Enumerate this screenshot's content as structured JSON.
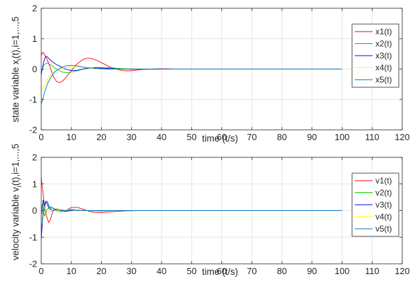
{
  "chart_data": [
    {
      "type": "line",
      "xlabel": "time (t/s)",
      "ylabel_parts": {
        "before": "state variable x",
        "subscript": "i",
        "after": "(t),i=1,...,5"
      },
      "xlim": [
        0,
        120
      ],
      "ylim": [
        -2,
        2
      ],
      "xticks": [
        0,
        10,
        20,
        30,
        40,
        50,
        60,
        70,
        80,
        90,
        100,
        110,
        120
      ],
      "yticks": [
        -2,
        -1,
        0,
        1,
        2
      ],
      "grid": true,
      "legend_position": "top-right",
      "series": [
        {
          "name": "x1(t)",
          "color": "#ff0000",
          "x": [
            0,
            0.5,
            1,
            2,
            3,
            4,
            5,
            6,
            7,
            8,
            10,
            12,
            14,
            15.5,
            17,
            19,
            21,
            23,
            25,
            27,
            29,
            31,
            33,
            36,
            40,
            45,
            55,
            70,
            100
          ],
          "y": [
            0.45,
            0.55,
            0.5,
            0.3,
            0.05,
            -0.25,
            -0.4,
            -0.45,
            -0.4,
            -0.3,
            -0.05,
            0.18,
            0.32,
            0.36,
            0.34,
            0.26,
            0.16,
            0.06,
            -0.01,
            -0.05,
            -0.06,
            -0.04,
            -0.02,
            0.0,
            0.01,
            0.0,
            0.0,
            0.0,
            0.0
          ]
        },
        {
          "name": "x2(t)",
          "color": "#00cc00",
          "x": [
            0,
            1,
            2,
            3,
            5,
            7,
            9,
            11,
            14,
            18,
            22,
            26,
            30,
            35,
            45,
            60,
            100
          ],
          "y": [
            -0.05,
            0.15,
            0.2,
            0.15,
            0.0,
            -0.1,
            -0.12,
            -0.08,
            0.0,
            0.05,
            0.05,
            0.02,
            0.0,
            -0.01,
            0.0,
            0.0,
            0.0
          ]
        },
        {
          "name": "x3(t)",
          "color": "#0000ff",
          "x": [
            0,
            0.5,
            1,
            1.5,
            2,
            3,
            4,
            5,
            6,
            8,
            10,
            12,
            15,
            18,
            22,
            26,
            30,
            35,
            45,
            60,
            100
          ],
          "y": [
            -0.2,
            0.1,
            0.3,
            0.42,
            0.4,
            0.3,
            0.22,
            0.15,
            0.1,
            0.0,
            -0.05,
            -0.04,
            0.02,
            0.04,
            0.02,
            0.0,
            -0.01,
            0.0,
            0.0,
            0.0,
            0.0
          ]
        },
        {
          "name": "x4(t)",
          "color": "#ffff00",
          "x": [
            0,
            0.5,
            1,
            2,
            3,
            4,
            6,
            8,
            10,
            13,
            16,
            20,
            25,
            30,
            40,
            60,
            100
          ],
          "y": [
            -0.6,
            -0.65,
            -0.55,
            -0.35,
            -0.2,
            -0.1,
            0.0,
            0.05,
            0.08,
            0.06,
            0.03,
            0.0,
            -0.01,
            0.0,
            0.0,
            0.0,
            0.0
          ]
        },
        {
          "name": "x5(t)",
          "color": "#0072bd",
          "x": [
            0,
            0.5,
            1,
            2,
            3,
            4,
            5,
            6,
            8,
            10,
            12,
            15,
            18,
            22,
            26,
            30,
            35,
            45,
            60,
            100
          ],
          "y": [
            -1.15,
            -1.0,
            -0.8,
            -0.5,
            -0.3,
            -0.15,
            -0.05,
            0.02,
            0.1,
            0.12,
            0.1,
            0.05,
            0.02,
            0.0,
            0.0,
            0.01,
            0.0,
            0.0,
            0.0,
            0.0
          ]
        }
      ]
    },
    {
      "type": "line",
      "xlabel": "time (t/s)",
      "ylabel_parts": {
        "before": "velocity variable v",
        "subscript": "i",
        "after": "(t),i=1,...,5"
      },
      "xlim": [
        0,
        120
      ],
      "ylim": [
        -2,
        2
      ],
      "xticks": [
        0,
        10,
        20,
        30,
        40,
        50,
        60,
        70,
        80,
        90,
        100,
        110,
        120
      ],
      "yticks": [
        -2,
        -1,
        0,
        1,
        2
      ],
      "grid": true,
      "legend_position": "top-right",
      "series": [
        {
          "name": "v1(t)",
          "color": "#ff0000",
          "x": [
            0,
            0.3,
            0.7,
            1,
            1.5,
            2,
            2.5,
            3,
            3.5,
            4,
            5,
            6,
            7,
            8,
            9,
            10,
            12,
            14,
            16,
            18,
            20,
            22,
            25,
            28,
            32,
            40,
            60,
            100
          ],
          "y": [
            1.25,
            0.9,
            0.6,
            0.2,
            -0.1,
            -0.3,
            -0.45,
            -0.35,
            -0.15,
            0.0,
            0.05,
            0.02,
            -0.02,
            0.0,
            0.05,
            0.12,
            0.12,
            0.05,
            -0.03,
            -0.07,
            -0.08,
            -0.06,
            -0.03,
            -0.01,
            0.0,
            0.0,
            0.0,
            0.0
          ]
        },
        {
          "name": "v2(t)",
          "color": "#00cc00",
          "x": [
            0,
            0.3,
            0.7,
            1,
            1.5,
            2,
            3,
            4,
            5,
            6,
            8,
            10,
            12,
            15,
            20,
            25,
            30,
            40,
            60,
            100
          ],
          "y": [
            -0.2,
            0.25,
            0.1,
            -0.2,
            -0.1,
            0.05,
            0.15,
            0.1,
            0.0,
            -0.05,
            0.0,
            0.05,
            0.03,
            0.0,
            -0.02,
            0.0,
            0.0,
            0.0,
            0.0,
            0.0
          ]
        },
        {
          "name": "v3(t)",
          "color": "#0000ff",
          "x": [
            0,
            0.3,
            0.6,
            1,
            1.5,
            2,
            2.5,
            3,
            4,
            5,
            6,
            8,
            10,
            12,
            15,
            20,
            30,
            40,
            60,
            100
          ],
          "y": [
            -1.05,
            -0.6,
            0.4,
            0.2,
            0.35,
            0.25,
            0.1,
            0.05,
            0.0,
            0.05,
            0.02,
            -0.03,
            0.0,
            0.02,
            0.0,
            0.0,
            0.0,
            0.0,
            0.0,
            0.0
          ]
        },
        {
          "name": "v4(t)",
          "color": "#ffff00",
          "x": [
            0,
            0.3,
            0.7,
            1,
            1.5,
            2,
            3,
            4,
            5,
            6,
            8,
            10,
            12,
            15,
            20,
            30,
            40,
            60,
            100
          ],
          "y": [
            -0.35,
            -0.25,
            -0.05,
            0.1,
            0.05,
            0.0,
            -0.05,
            0.05,
            0.08,
            0.05,
            0.02,
            0.03,
            0.02,
            0.0,
            0.0,
            0.0,
            0.0,
            0.0,
            0.0
          ]
        },
        {
          "name": "v5(t)",
          "color": "#0072bd",
          "x": [
            0,
            0.3,
            0.6,
            1,
            1.5,
            2,
            2.5,
            3,
            4,
            5,
            6,
            8,
            10,
            12,
            15,
            20,
            30,
            40,
            60,
            100
          ],
          "y": [
            -0.75,
            -0.45,
            -0.2,
            0.05,
            0.3,
            0.35,
            0.2,
            0.1,
            0.08,
            0.04,
            0.02,
            0.0,
            0.02,
            0.0,
            0.0,
            0.0,
            0.0,
            0.0,
            0.0,
            0.0
          ]
        }
      ]
    }
  ]
}
